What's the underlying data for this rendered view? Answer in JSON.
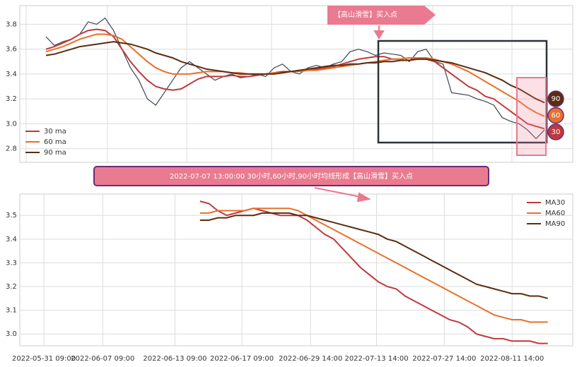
{
  "chart_data": [
    {
      "type": "line",
      "legend": "lower left",
      "grid": true,
      "ylim": [
        2.69,
        3.95
      ],
      "yticks": [
        {
          "value": 2.8,
          "label": "2.8"
        },
        {
          "value": 3.0,
          "label": "3.0"
        },
        {
          "value": 3.2,
          "label": "3.2"
        },
        {
          "value": 3.4,
          "label": "3.4"
        },
        {
          "value": 3.6,
          "label": "3.6"
        },
        {
          "value": 3.8,
          "label": "3.8"
        }
      ],
      "annotation": "【高山滑雪】买入点",
      "end_labels": [
        "90",
        "60",
        "30"
      ],
      "series": [
        {
          "color": "#3b4656",
          "values": [
            3.7,
            3.63,
            3.66,
            3.68,
            3.72,
            3.82,
            3.8,
            3.85,
            3.75,
            3.6,
            3.45,
            3.35,
            3.2,
            3.15,
            3.25,
            3.35,
            3.45,
            3.5,
            3.45,
            3.4,
            3.35,
            3.38,
            3.4,
            3.37,
            3.38,
            3.4,
            3.38,
            3.45,
            3.48,
            3.42,
            3.4,
            3.45,
            3.47,
            3.45,
            3.48,
            3.5,
            3.58,
            3.6,
            3.58,
            3.55,
            3.57,
            3.56,
            3.55,
            3.5,
            3.58,
            3.6,
            3.5,
            3.48,
            3.25,
            3.24,
            3.23,
            3.2,
            3.18,
            3.15,
            3.05,
            3.02,
            3.0,
            2.95,
            2.88,
            2.95
          ]
        },
        {
          "name": "30 ma",
          "color": "#c0393b",
          "values": [
            3.6,
            3.62,
            3.65,
            3.68,
            3.72,
            3.75,
            3.76,
            3.75,
            3.7,
            3.6,
            3.5,
            3.42,
            3.35,
            3.3,
            3.28,
            3.27,
            3.28,
            3.32,
            3.36,
            3.38,
            3.38,
            3.38,
            3.39,
            3.38,
            3.38,
            3.39,
            3.4,
            3.41,
            3.42,
            3.42,
            3.43,
            3.43,
            3.44,
            3.45,
            3.46,
            3.48,
            3.5,
            3.52,
            3.53,
            3.54,
            3.54,
            3.52,
            3.52,
            3.53,
            3.52,
            3.52,
            3.5,
            3.45,
            3.4,
            3.35,
            3.3,
            3.27,
            3.22,
            3.2,
            3.15,
            3.1,
            3.05,
            3.0,
            2.98,
            2.96
          ]
        },
        {
          "name": "60 ma",
          "color": "#e8702a",
          "values": [
            3.58,
            3.6,
            3.62,
            3.65,
            3.68,
            3.7,
            3.72,
            3.72,
            3.71,
            3.68,
            3.62,
            3.56,
            3.5,
            3.45,
            3.42,
            3.4,
            3.4,
            3.4,
            3.41,
            3.42,
            3.42,
            3.42,
            3.41,
            3.41,
            3.4,
            3.4,
            3.4,
            3.41,
            3.41,
            3.42,
            3.42,
            3.43,
            3.43,
            3.44,
            3.45,
            3.46,
            3.47,
            3.48,
            3.49,
            3.5,
            3.51,
            3.52,
            3.52,
            3.53,
            3.53,
            3.53,
            3.52,
            3.5,
            3.48,
            3.45,
            3.42,
            3.38,
            3.34,
            3.3,
            3.26,
            3.22,
            3.18,
            3.13,
            3.09,
            3.06
          ]
        },
        {
          "name": "90 ma",
          "color": "#5a2d10",
          "values": [
            3.55,
            3.56,
            3.58,
            3.6,
            3.62,
            3.63,
            3.64,
            3.65,
            3.66,
            3.65,
            3.64,
            3.62,
            3.6,
            3.57,
            3.55,
            3.53,
            3.5,
            3.48,
            3.46,
            3.44,
            3.43,
            3.42,
            3.41,
            3.4,
            3.4,
            3.4,
            3.4,
            3.4,
            3.41,
            3.42,
            3.43,
            3.44,
            3.45,
            3.46,
            3.47,
            3.47,
            3.48,
            3.48,
            3.49,
            3.49,
            3.5,
            3.5,
            3.51,
            3.51,
            3.52,
            3.52,
            3.51,
            3.5,
            3.49,
            3.47,
            3.45,
            3.43,
            3.41,
            3.38,
            3.35,
            3.31,
            3.28,
            3.24,
            3.2,
            3.17
          ]
        }
      ]
    },
    {
      "type": "line",
      "legend": "upper right",
      "grid": true,
      "title": "2022-07-07 13:00:00 30小时,60小时,90小时均线形成【高山滑雪】买入点",
      "ylim": [
        2.95,
        3.59
      ],
      "yticks": [
        {
          "value": 3.0,
          "label": "3.0"
        },
        3.1,
        3.2,
        3.3,
        3.4,
        3.5
      ],
      "xlim": [
        -20.2,
        41.8
      ],
      "xticks": [
        {
          "value": -17.5,
          "label": "2022-05-31 09:00"
        },
        {
          "value": -10.9,
          "label": "2022-06-07 09:00"
        },
        {
          "value": -2.8,
          "label": "2022-06-13 09:00"
        },
        {
          "value": 4.7,
          "label": "2022-06-17 09:00"
        },
        {
          "value": 12.4,
          "label": "2022-06-29 14:00"
        },
        {
          "value": 19.8,
          "label": "2022-07-13 14:00"
        },
        {
          "value": 27.4,
          "label": "2022-07-27 14:00"
        },
        {
          "value": 35,
          "label": "2022-08-11 14:00"
        }
      ],
      "x": [
        0,
        1,
        2,
        3,
        4,
        5,
        6,
        7,
        8,
        9,
        10,
        11,
        12,
        13,
        14,
        15,
        16,
        17,
        18,
        19,
        20,
        21,
        22,
        23,
        24,
        25,
        26,
        27,
        28,
        29,
        30,
        31,
        32,
        33,
        34,
        35,
        36,
        37,
        38,
        39
      ],
      "series": [
        {
          "name": "MA30",
          "color": "#c0393b",
          "values": [
            3.56,
            3.55,
            3.52,
            3.5,
            3.51,
            3.52,
            3.53,
            3.52,
            3.51,
            3.5,
            3.5,
            3.5,
            3.48,
            3.45,
            3.42,
            3.4,
            3.36,
            3.32,
            3.28,
            3.25,
            3.22,
            3.2,
            3.19,
            3.16,
            3.14,
            3.12,
            3.1,
            3.08,
            3.06,
            3.05,
            3.03,
            3.0,
            2.99,
            2.98,
            2.98,
            2.97,
            2.97,
            2.97,
            2.96,
            2.96
          ]
        },
        {
          "name": "MA60",
          "color": "#e8702a",
          "values": [
            3.51,
            3.51,
            3.52,
            3.52,
            3.52,
            3.52,
            3.53,
            3.53,
            3.53,
            3.53,
            3.53,
            3.52,
            3.5,
            3.48,
            3.46,
            3.44,
            3.42,
            3.4,
            3.38,
            3.36,
            3.34,
            3.32,
            3.3,
            3.28,
            3.26,
            3.24,
            3.22,
            3.2,
            3.18,
            3.16,
            3.14,
            3.12,
            3.1,
            3.08,
            3.07,
            3.06,
            3.06,
            3.05,
            3.05,
            3.05
          ]
        },
        {
          "name": "MA90",
          "color": "#5a2d10",
          "values": [
            3.48,
            3.48,
            3.49,
            3.49,
            3.5,
            3.5,
            3.5,
            3.51,
            3.51,
            3.51,
            3.51,
            3.5,
            3.5,
            3.49,
            3.48,
            3.47,
            3.46,
            3.45,
            3.44,
            3.43,
            3.42,
            3.4,
            3.39,
            3.37,
            3.35,
            3.33,
            3.31,
            3.29,
            3.27,
            3.25,
            3.23,
            3.21,
            3.2,
            3.19,
            3.18,
            3.17,
            3.17,
            3.16,
            3.16,
            3.15
          ]
        }
      ]
    }
  ]
}
